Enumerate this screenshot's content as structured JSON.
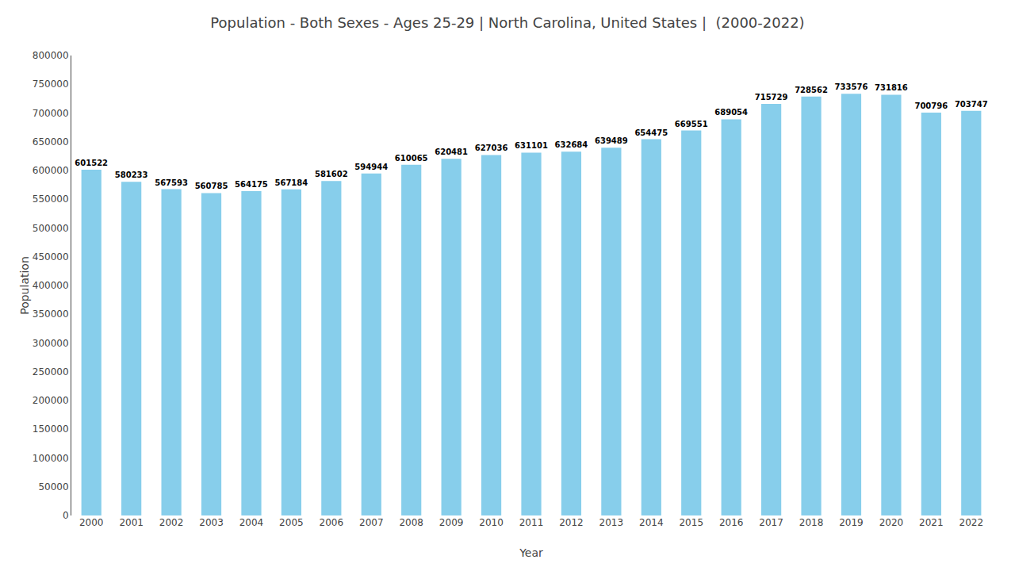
{
  "chart_data": {
    "type": "bar",
    "title": "Population - Both Sexes - Ages 25-29 | North Carolina, United States |  (2000-2022)",
    "x_label": "Year",
    "y_label": "Population",
    "categories": [
      "2000",
      "2001",
      "2002",
      "2003",
      "2004",
      "2005",
      "2006",
      "2007",
      "2008",
      "2009",
      "2010",
      "2011",
      "2012",
      "2013",
      "2014",
      "2015",
      "2016",
      "2017",
      "2018",
      "2019",
      "2020",
      "2021",
      "2022"
    ],
    "values": [
      601522,
      580233,
      567593,
      560785,
      564175,
      567184,
      581602,
      594944,
      610065,
      620481,
      627036,
      631101,
      632684,
      639489,
      654475,
      669551,
      689054,
      715729,
      728562,
      733576,
      731816,
      700796,
      703747
    ],
    "color": "#87CEEB",
    "ylim": [
      0,
      800000
    ],
    "yticks": [
      0,
      50000,
      100000,
      150000,
      200000,
      250000,
      300000,
      350000,
      400000,
      450000,
      500000,
      550000,
      600000,
      650000,
      700000,
      750000,
      800000
    ],
    "grid": false,
    "data_labels": true
  }
}
